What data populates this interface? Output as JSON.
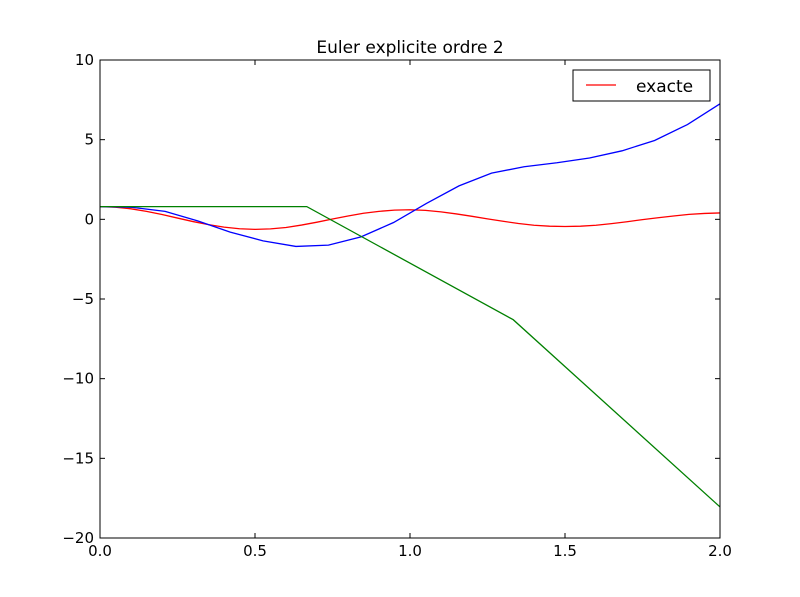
{
  "chart_data": {
    "type": "line",
    "title": "Euler explicite ordre 2",
    "xlabel": "",
    "ylabel": "",
    "xlim": [
      0.0,
      2.0
    ],
    "ylim": [
      -20,
      10
    ],
    "x_ticks": [
      0.0,
      0.5,
      1.0,
      1.5,
      2.0
    ],
    "x_tick_labels": [
      "0.0",
      "0.5",
      "1.0",
      "1.5",
      "2.0"
    ],
    "y_ticks": [
      10,
      5,
      0,
      -5,
      -10,
      -15,
      -20
    ],
    "y_tick_labels": [
      "10",
      "5",
      "0",
      "−5",
      "−10",
      "−15",
      "−20"
    ],
    "grid": false,
    "legend": {
      "placement": "top-right",
      "entries": [
        {
          "series": 0,
          "label": "exacte"
        }
      ]
    },
    "series": [
      {
        "name": "exacte",
        "color": "#ff0000",
        "x": [
          0.0,
          0.05,
          0.1,
          0.15,
          0.2,
          0.25,
          0.3,
          0.35,
          0.4,
          0.45,
          0.5,
          0.55,
          0.6,
          0.65,
          0.7,
          0.75,
          0.8,
          0.85,
          0.9,
          0.95,
          1.0,
          1.05,
          1.1,
          1.15,
          1.2,
          1.25,
          1.3,
          1.35,
          1.4,
          1.45,
          1.5,
          1.55,
          1.6,
          1.65,
          1.7,
          1.75,
          1.8,
          1.85,
          1.9,
          1.95,
          2.0
        ],
        "y": [
          0.8,
          0.76,
          0.66,
          0.5,
          0.3,
          0.08,
          -0.14,
          -0.33,
          -0.49,
          -0.59,
          -0.63,
          -0.6,
          -0.51,
          -0.36,
          -0.18,
          0.02,
          0.21,
          0.38,
          0.5,
          0.58,
          0.6,
          0.56,
          0.47,
          0.34,
          0.19,
          0.03,
          -0.12,
          -0.26,
          -0.37,
          -0.43,
          -0.45,
          -0.43,
          -0.37,
          -0.27,
          -0.15,
          -0.02,
          0.1,
          0.21,
          0.31,
          0.37,
          0.4
        ]
      },
      {
        "name": "",
        "color": "#0000ff",
        "x": [
          0.0,
          0.105,
          0.21,
          0.315,
          0.42,
          0.526,
          0.632,
          0.737,
          0.842,
          0.947,
          1.053,
          1.158,
          1.263,
          1.368,
          1.474,
          1.579,
          1.684,
          1.789,
          1.895,
          2.0
        ],
        "y": [
          0.8,
          0.75,
          0.5,
          -0.1,
          -0.8,
          -1.35,
          -1.7,
          -1.62,
          -1.1,
          -0.2,
          1.0,
          2.1,
          2.9,
          3.3,
          3.55,
          3.85,
          4.3,
          4.95,
          5.95,
          7.25
        ]
      },
      {
        "name": "",
        "color": "#008000",
        "x": [
          0.0,
          0.667,
          1.333,
          2.0
        ],
        "y": [
          0.8,
          0.8,
          -6.3,
          -18.05
        ]
      }
    ]
  }
}
